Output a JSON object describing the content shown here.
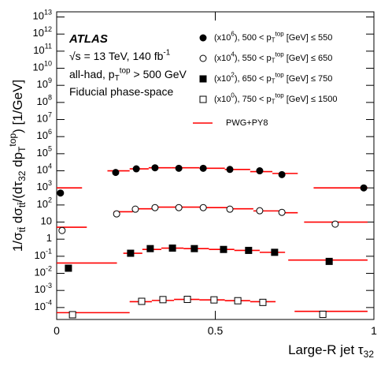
{
  "chart_data": {
    "type": "scatter",
    "xlabel": "Large-R jet τ_{32}",
    "ylabel": "1/σ_{tt̄} dσ_{tt̄}/(dτ_{32} dp_{T}^{top})  [1/GeV]",
    "annotations": [
      "ATLAS",
      "√s = 13 TeV, 140  fb^{-1}",
      "all-had, p_{T}^{top} > 500 GeV",
      "Fiducial phase-space"
    ],
    "xlim": [
      0,
      1
    ],
    "xticks": [
      0,
      0.5,
      1
    ],
    "ylim": [
      2e-05,
      20000000000000.0
    ],
    "log_y": true,
    "yticks": [
      {
        "value": 10000000000000.0,
        "label": "10^{13}"
      },
      {
        "value": 1000000000000.0,
        "label": "10^{12}"
      },
      {
        "value": 100000000000.0,
        "label": "10^{11}"
      },
      {
        "value": 10000000000.0,
        "label": "10^{10}"
      },
      {
        "value": 1000000000.0,
        "label": "10^{9}"
      },
      {
        "value": 100000000.0,
        "label": "10^{8}"
      },
      {
        "value": 10000000.0,
        "label": "10^{7}"
      },
      {
        "value": 1000000.0,
        "label": "10^{6}"
      },
      {
        "value": 100000.0,
        "label": "10^{5}"
      },
      {
        "value": 10000.0,
        "label": "10^{4}"
      },
      {
        "value": 1000.0,
        "label": "10^{3}"
      },
      {
        "value": 100.0,
        "label": "10^{2}"
      },
      10,
      1,
      {
        "value": 0.1,
        "label": "10^{-1}"
      },
      {
        "value": 0.01,
        "label": "10^{-2}"
      },
      {
        "value": 0.001,
        "label": "10^{-3}"
      },
      {
        "value": 0.0001,
        "label": "10^{-4}"
      }
    ],
    "model_name": "PWG+PY8",
    "model_color": "#ff0000",
    "series": [
      {
        "name": "(x10^{6}), 500 < p_{T}^{top} [GeV] ≤ 550",
        "marker": "circle",
        "filled": true,
        "color": "#000000",
        "x": [
          0.012,
          0.186,
          0.251,
          0.31,
          0.385,
          0.462,
          0.546,
          0.64,
          0.71,
          0.968
        ],
        "values": [
          500,
          8000,
          13000,
          15000,
          14000,
          14000,
          12000,
          10000,
          6000,
          1000
        ],
        "model": {
          "edges": [
            0,
            0.08,
            0.16,
            0.23,
            0.29,
            0.36,
            0.45,
            0.53,
            0.61,
            0.68,
            0.76,
            0.81,
            0.98
          ],
          "values": [
            1000,
            null,
            10000,
            13000,
            15000,
            15000,
            14000,
            12000,
            9000,
            7000,
            null,
            1000
          ]
        }
      },
      {
        "name": "(x10^{4}), 550 < p_{T}^{top} [GeV] ≤ 650",
        "marker": "circle",
        "filled": false,
        "color": "#000000",
        "x": [
          0.017,
          0.189,
          0.248,
          0.31,
          0.385,
          0.462,
          0.546,
          0.64,
          0.71,
          0.878
        ],
        "values": [
          3.2,
          30,
          57,
          70,
          70,
          70,
          57,
          46,
          37,
          7.6
        ],
        "model": {
          "edges": [
            0,
            0.095,
            0.18,
            0.24,
            0.3,
            0.38,
            0.46,
            0.54,
            0.62,
            0.7,
            0.76,
            0.78,
            0.98
          ],
          "values": [
            5,
            null,
            40,
            60,
            75,
            75,
            70,
            60,
            45,
            35,
            null,
            10
          ]
        }
      },
      {
        "name": "(x10^{2}), 650 < p_{T}^{top} [GeV] ≤ 750",
        "marker": "square",
        "filled": true,
        "color": "#000000",
        "x": [
          0.037,
          0.233,
          0.295,
          0.365,
          0.434,
          0.526,
          0.605,
          0.687,
          0.859
        ],
        "values": [
          0.02,
          0.15,
          0.28,
          0.3,
          0.28,
          0.25,
          0.22,
          0.17,
          0.05
        ],
        "model": {
          "edges": [
            0,
            0.19,
            0.21,
            0.27,
            0.33,
            0.4,
            0.48,
            0.56,
            0.64,
            0.72,
            0.73,
            0.98
          ],
          "values": [
            0.04,
            null,
            0.15,
            0.25,
            0.3,
            0.28,
            0.25,
            0.22,
            0.17,
            null,
            0.06
          ]
        }
      },
      {
        "name": "(x10^{0}), 750 < p_{T}^{top} [GeV] ≤ 1500",
        "marker": "square",
        "filled": false,
        "color": "#000000",
        "x": [
          0.05,
          0.268,
          0.335,
          0.412,
          0.496,
          0.571,
          0.65,
          0.839
        ],
        "values": [
          3.8e-05,
          0.00023,
          0.00029,
          0.0003,
          0.00028,
          0.00025,
          0.0002,
          4e-05
        ],
        "model": {
          "edges": [
            0,
            0.23,
            0.3,
            0.37,
            0.45,
            0.53,
            0.61,
            0.69,
            0.75,
            0.98
          ],
          "values": [
            5e-05,
            0.00022,
            0.00026,
            0.0003,
            0.00028,
            0.00025,
            0.00022,
            null,
            6e-05
          ]
        }
      }
    ]
  }
}
